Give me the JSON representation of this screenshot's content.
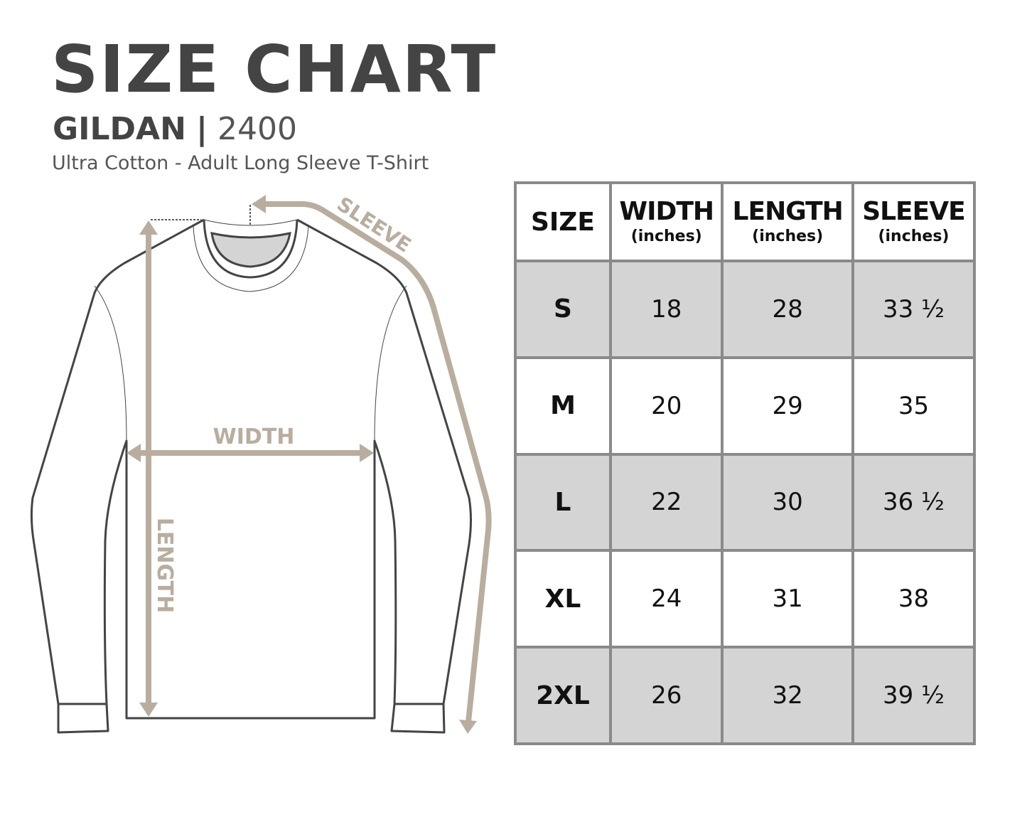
{
  "header": {
    "title": "SIZE CHART",
    "brand": "GILDAN",
    "separator": "|",
    "model": "2400",
    "subtitle": "Ultra Cotton - Adult Long Sleeve T-Shirt"
  },
  "diagram": {
    "labels": {
      "sleeve": "SLEEVE",
      "width": "WIDTH",
      "length": "LENGTH"
    },
    "colors": {
      "measure": "#b9ad9e",
      "outline": "#444444",
      "neck_inner": "#d4d4d4"
    }
  },
  "table": {
    "columns": [
      {
        "label": "SIZE",
        "unit": ""
      },
      {
        "label": "WIDTH",
        "unit": "(inches)"
      },
      {
        "label": "LENGTH",
        "unit": "(inches)"
      },
      {
        "label": "SLEEVE",
        "unit": "(inches)"
      }
    ],
    "rows": [
      [
        "S",
        "18",
        "28",
        "33 ½"
      ],
      [
        "M",
        "20",
        "29",
        "35"
      ],
      [
        "L",
        "22",
        "30",
        "36 ½"
      ],
      [
        "XL",
        "24",
        "31",
        "38"
      ],
      [
        "2XL",
        "26",
        "32",
        "39 ½"
      ]
    ],
    "colors": {
      "border": "#8a8a8a",
      "shaded_row": "#d4d4d4"
    }
  }
}
